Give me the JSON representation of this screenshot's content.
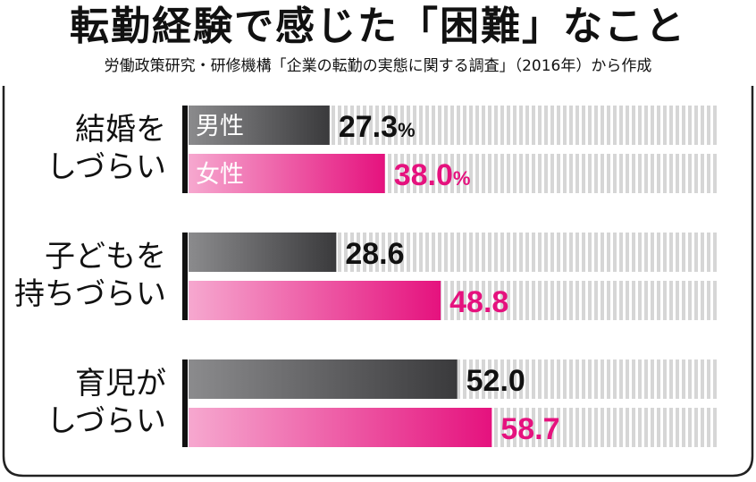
{
  "title": "転勤経験で感じた「困難」なこと",
  "subtitle": "労働政策研究・研修機構「企業の転勤の実態に関する調査」（2016年）から作成",
  "colors": {
    "male_bar_start": "#8b8b8d",
    "male_bar_end": "#3a3a3c",
    "female_bar_start": "#f6a8cf",
    "female_bar_end": "#e5127e",
    "track": "#d6d6d6",
    "male_value": "#111111",
    "female_value": "#e5127e",
    "female_label": "#ffffff",
    "male_label": "#ffffff"
  },
  "chart_data": {
    "type": "bar",
    "orientation": "horizontal",
    "xlim": [
      0,
      100
    ],
    "categories": [
      [
        "結婚を",
        "しづらい"
      ],
      [
        "子どもを",
        "持ちづらい"
      ],
      [
        "育児が",
        "しづらい"
      ]
    ],
    "series": [
      {
        "name": "男性",
        "values": [
          27.3,
          28.6,
          52.0
        ],
        "labels": [
          "27.3%",
          "28.6",
          "52.0"
        ]
      },
      {
        "name": "女性",
        "values": [
          38.0,
          48.8,
          58.7
        ],
        "labels": [
          "38.0%",
          "48.8",
          "58.7"
        ]
      }
    ]
  }
}
